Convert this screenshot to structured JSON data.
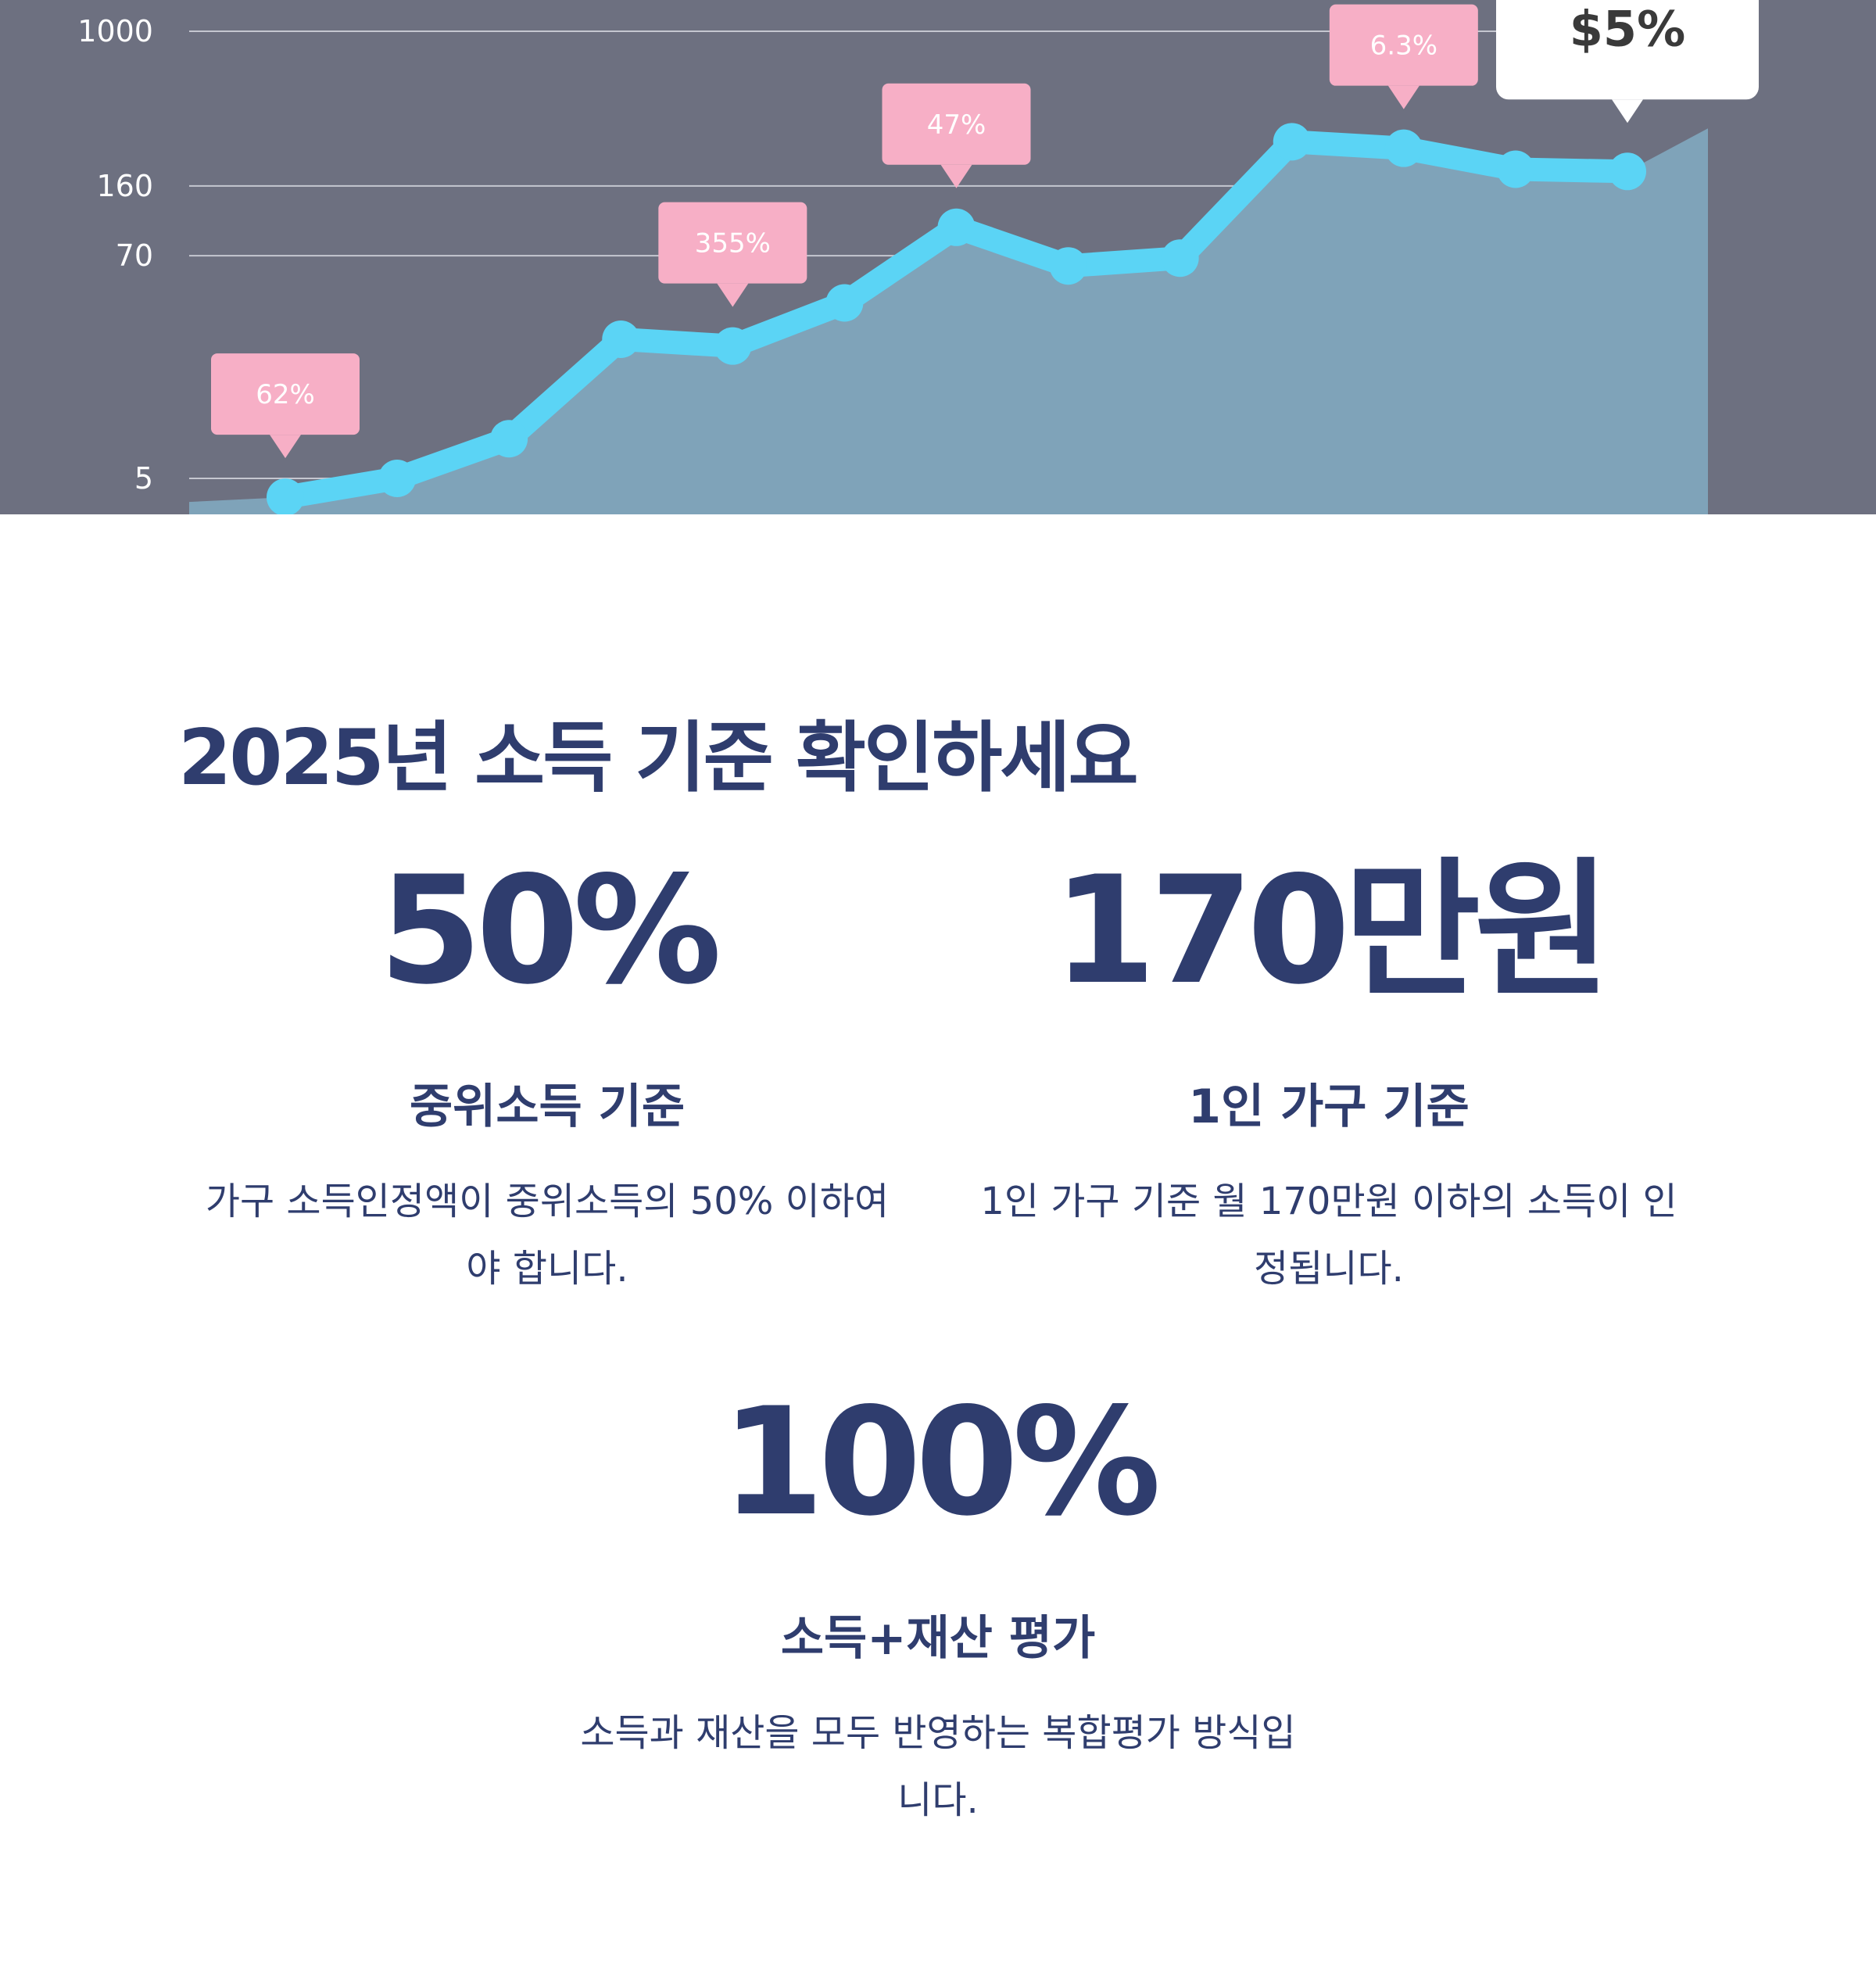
{
  "chart_data": {
    "type": "area",
    "title": "",
    "xlabel": "",
    "ylabel": "",
    "y_ticks": [
      "1000",
      "160",
      "70",
      "5"
    ],
    "y_tick_values": [
      1000,
      160,
      70,
      5
    ],
    "y_scale": "log",
    "grid": true,
    "series": [
      {
        "values": [
          4,
          5,
          8,
          26,
          24,
          40,
          98,
          62,
          68,
          270,
          250,
          195,
          190
        ]
      }
    ],
    "annotations": [
      {
        "label": "62%",
        "point_index": 0
      },
      {
        "label": "355%",
        "point_index": 4
      },
      {
        "label": "47%",
        "point_index": 6
      },
      {
        "label": "6.3%",
        "point_index": 10
      },
      {
        "label": "$5%",
        "point_index": 12
      }
    ],
    "colors": {
      "background": "#6d7080",
      "line": "#5bd4f5",
      "area": "#7fa3b9",
      "grid": "#c5c7d0",
      "label_bubble": "#f7afc6",
      "highlight_bubble": "#ffffff"
    }
  },
  "section": {
    "title": "2025년 소득 기준 확인하세요",
    "stats": [
      {
        "value": "50%",
        "label": "중위소득 기준",
        "desc_line1": "가구 소득인정액이 중위소득의 50% 이하여",
        "desc_line2": "야 합니다."
      },
      {
        "value": "170만원",
        "label": "1인 가구 기준",
        "desc_line1": "1인 가구 기준 월 170만원 이하의 소득이 인",
        "desc_line2": "정됩니다."
      },
      {
        "value": "100%",
        "label": "소득+재산 평가",
        "desc_line1": "소득과 재산을 모두 반영하는 복합평가 방식입",
        "desc_line2": "니다."
      }
    ],
    "colors": {
      "text": "#2f3d6e"
    }
  }
}
